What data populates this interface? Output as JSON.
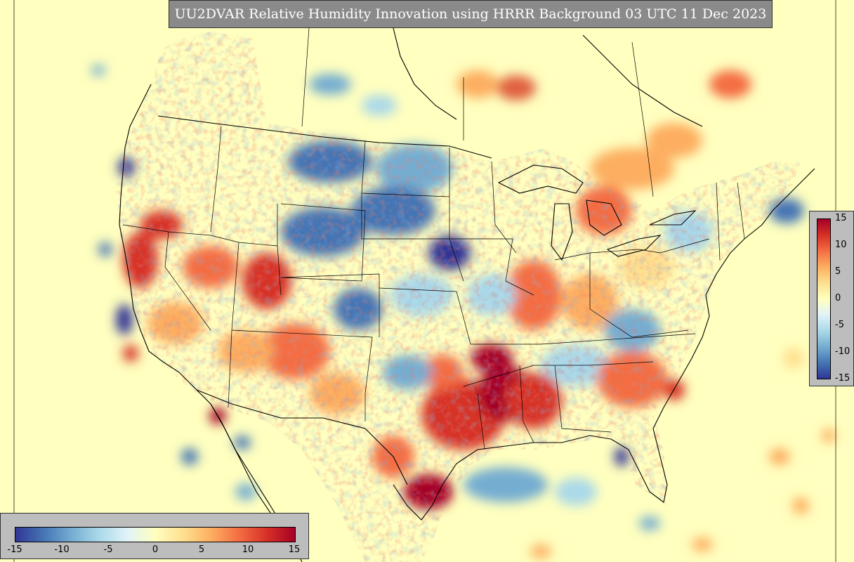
{
  "title": "UU2DVAR Relative Humidity Innovation using HRRR Background 03 UTC 11 Dec 2023",
  "colorbar": {
    "colormap": "RdYlBu_r",
    "colors": [
      "#313695",
      "#4575b4",
      "#74add1",
      "#abd9e9",
      "#e0f3f8",
      "#ffffbf",
      "#fee090",
      "#fdae61",
      "#f46d43",
      "#d73027",
      "#a50026"
    ],
    "right_ticks": [
      "15",
      "10",
      "5",
      "0",
      "-5",
      "-10",
      "-15"
    ],
    "bottom_ticks": [
      "-15",
      "-10",
      "-5",
      "0",
      "5",
      "10",
      "15"
    ]
  },
  "map": {
    "background_color": "#ffffbf",
    "border_color": "#000000",
    "extent": "CONUS"
  }
}
